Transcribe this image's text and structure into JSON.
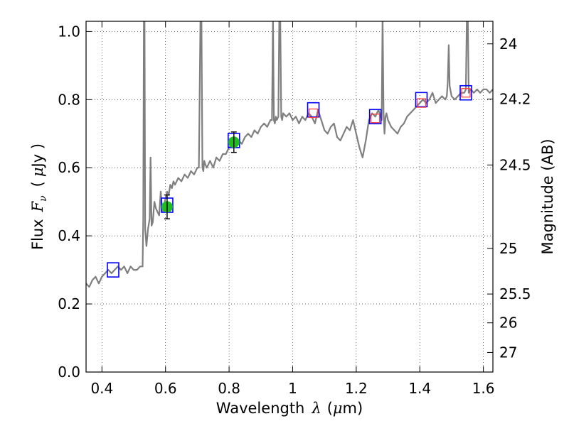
{
  "chart_data": {
    "type": "line",
    "x_axis": {
      "label_prefix": "Wavelength",
      "label_symbol": "λ",
      "label_unit_open": "(",
      "label_unit_mu": "μ",
      "label_unit_rest": "m)",
      "range": [
        0.35,
        1.63
      ],
      "ticks": [
        0.4,
        0.6,
        0.8,
        1.0,
        1.2,
        1.4,
        1.6
      ],
      "tick_labels": [
        "0.4",
        "0.6",
        "0.8",
        "1",
        "1.2",
        "1.4",
        "1.6"
      ]
    },
    "y_axis_left": {
      "label_prefix": "Flux",
      "label_symbol": "F",
      "label_subscript": "ν",
      "label_unit_open": "(",
      "label_unit_mu": "μ",
      "label_unit_rest": "Jy )",
      "range": [
        0.0,
        1.03
      ],
      "ticks": [
        0.0,
        0.2,
        0.4,
        0.6,
        0.8,
        1.0
      ],
      "tick_labels": [
        "0.0",
        "0.2",
        "0.4",
        "0.6",
        "0.8",
        "1.0"
      ]
    },
    "y_axis_right": {
      "label": "Magnitude (AB)",
      "tick_labels": [
        "24",
        "24.2",
        "24.5",
        "25",
        "25.5",
        "26",
        "27"
      ],
      "tick_flux_values": [
        0.9638,
        0.8017,
        0.6081,
        0.3631,
        0.2291,
        0.1445,
        0.0575
      ]
    },
    "grid": true,
    "colors": {
      "model": "#7f7f7f",
      "photometry_box": "#0000ff",
      "model_box": "#ff4040",
      "measurement_fill": "#22bb22",
      "errorbar": "#000000"
    },
    "series": [
      {
        "kind": "model_spectrum",
        "x": [
          0.35,
          0.36,
          0.37,
          0.38,
          0.39,
          0.4,
          0.41,
          0.42,
          0.43,
          0.44,
          0.45,
          0.46,
          0.47,
          0.48,
          0.49,
          0.5,
          0.51,
          0.52,
          0.528,
          0.53,
          0.532,
          0.534,
          0.536,
          0.54,
          0.545,
          0.55,
          0.553,
          0.556,
          0.56,
          0.565,
          0.57,
          0.58,
          0.585,
          0.59,
          0.595,
          0.6,
          0.605,
          0.61,
          0.615,
          0.62,
          0.625,
          0.63,
          0.64,
          0.65,
          0.66,
          0.67,
          0.68,
          0.69,
          0.7,
          0.705,
          0.71,
          0.713,
          0.716,
          0.719,
          0.722,
          0.725,
          0.73,
          0.74,
          0.75,
          0.76,
          0.77,
          0.78,
          0.79,
          0.8,
          0.81,
          0.82,
          0.83,
          0.84,
          0.85,
          0.86,
          0.87,
          0.88,
          0.89,
          0.9,
          0.91,
          0.92,
          0.93,
          0.935,
          0.938,
          0.941,
          0.944,
          0.947,
          0.95,
          0.955,
          0.958,
          0.961,
          0.964,
          0.967,
          0.97,
          0.98,
          0.99,
          1.0,
          1.01,
          1.02,
          1.03,
          1.04,
          1.05,
          1.06,
          1.07,
          1.08,
          1.09,
          1.1,
          1.11,
          1.12,
          1.13,
          1.14,
          1.15,
          1.16,
          1.17,
          1.18,
          1.19,
          1.2,
          1.21,
          1.22,
          1.23,
          1.24,
          1.25,
          1.26,
          1.27,
          1.28,
          1.283,
          1.286,
          1.289,
          1.292,
          1.295,
          1.3,
          1.31,
          1.32,
          1.33,
          1.34,
          1.35,
          1.36,
          1.37,
          1.38,
          1.39,
          1.4,
          1.41,
          1.42,
          1.43,
          1.44,
          1.45,
          1.46,
          1.47,
          1.48,
          1.485,
          1.488,
          1.491,
          1.494,
          1.5,
          1.51,
          1.52,
          1.53,
          1.54,
          1.545,
          1.548,
          1.551,
          1.554,
          1.56,
          1.57,
          1.58,
          1.59,
          1.6,
          1.61,
          1.62,
          1.63
        ],
        "y": [
          0.26,
          0.25,
          0.27,
          0.28,
          0.26,
          0.28,
          0.29,
          0.3,
          0.29,
          0.3,
          0.31,
          0.3,
          0.31,
          0.29,
          0.31,
          0.3,
          0.3,
          0.31,
          0.31,
          0.45,
          1.05,
          1.05,
          0.42,
          0.37,
          0.42,
          0.45,
          0.63,
          0.43,
          0.44,
          0.5,
          0.48,
          0.46,
          0.53,
          0.47,
          0.49,
          0.51,
          0.53,
          0.52,
          0.55,
          0.54,
          0.56,
          0.55,
          0.57,
          0.56,
          0.58,
          0.57,
          0.59,
          0.58,
          0.6,
          0.6,
          1.05,
          1.05,
          0.6,
          0.59,
          0.62,
          0.61,
          0.6,
          0.62,
          0.6,
          0.63,
          0.62,
          0.64,
          0.64,
          0.66,
          0.67,
          0.66,
          0.68,
          0.67,
          0.69,
          0.7,
          0.69,
          0.71,
          0.7,
          0.72,
          0.73,
          0.72,
          0.74,
          0.74,
          1.05,
          0.74,
          0.73,
          0.75,
          0.74,
          0.75,
          1.05,
          1.05,
          0.75,
          0.74,
          0.76,
          0.75,
          0.76,
          0.74,
          0.75,
          0.73,
          0.75,
          0.74,
          0.76,
          0.75,
          0.73,
          0.77,
          0.74,
          0.71,
          0.7,
          0.72,
          0.73,
          0.69,
          0.68,
          0.7,
          0.72,
          0.71,
          0.74,
          0.7,
          0.66,
          0.63,
          0.68,
          0.74,
          0.76,
          0.75,
          0.77,
          0.74,
          1.05,
          0.76,
          0.7,
          0.75,
          0.76,
          0.74,
          0.72,
          0.71,
          0.7,
          0.72,
          0.73,
          0.75,
          0.76,
          0.77,
          0.78,
          0.79,
          0.8,
          0.79,
          0.8,
          0.82,
          0.79,
          0.8,
          0.81,
          0.8,
          0.81,
          0.85,
          0.96,
          0.84,
          0.81,
          0.8,
          0.81,
          0.82,
          0.82,
          0.83,
          1.05,
          1.05,
          0.82,
          0.83,
          0.82,
          0.83,
          0.82,
          0.83,
          0.83,
          0.82,
          0.83
        ]
      },
      {
        "kind": "photometry_boxes",
        "x": [
          0.435,
          0.605,
          0.815,
          1.065,
          1.26,
          1.405,
          1.545
        ],
        "y": [
          0.3,
          0.49,
          0.68,
          0.77,
          0.75,
          0.8,
          0.82
        ]
      },
      {
        "kind": "model_boxes",
        "x": [
          1.065,
          1.26,
          1.405,
          1.545
        ],
        "y": [
          0.76,
          0.745,
          0.79,
          0.82
        ]
      },
      {
        "kind": "measurements",
        "x": [
          0.605,
          0.815
        ],
        "y": [
          0.485,
          0.675
        ],
        "yerr_low": [
          0.035,
          0.03
        ],
        "yerr_high": [
          0.035,
          0.03
        ]
      }
    ]
  }
}
